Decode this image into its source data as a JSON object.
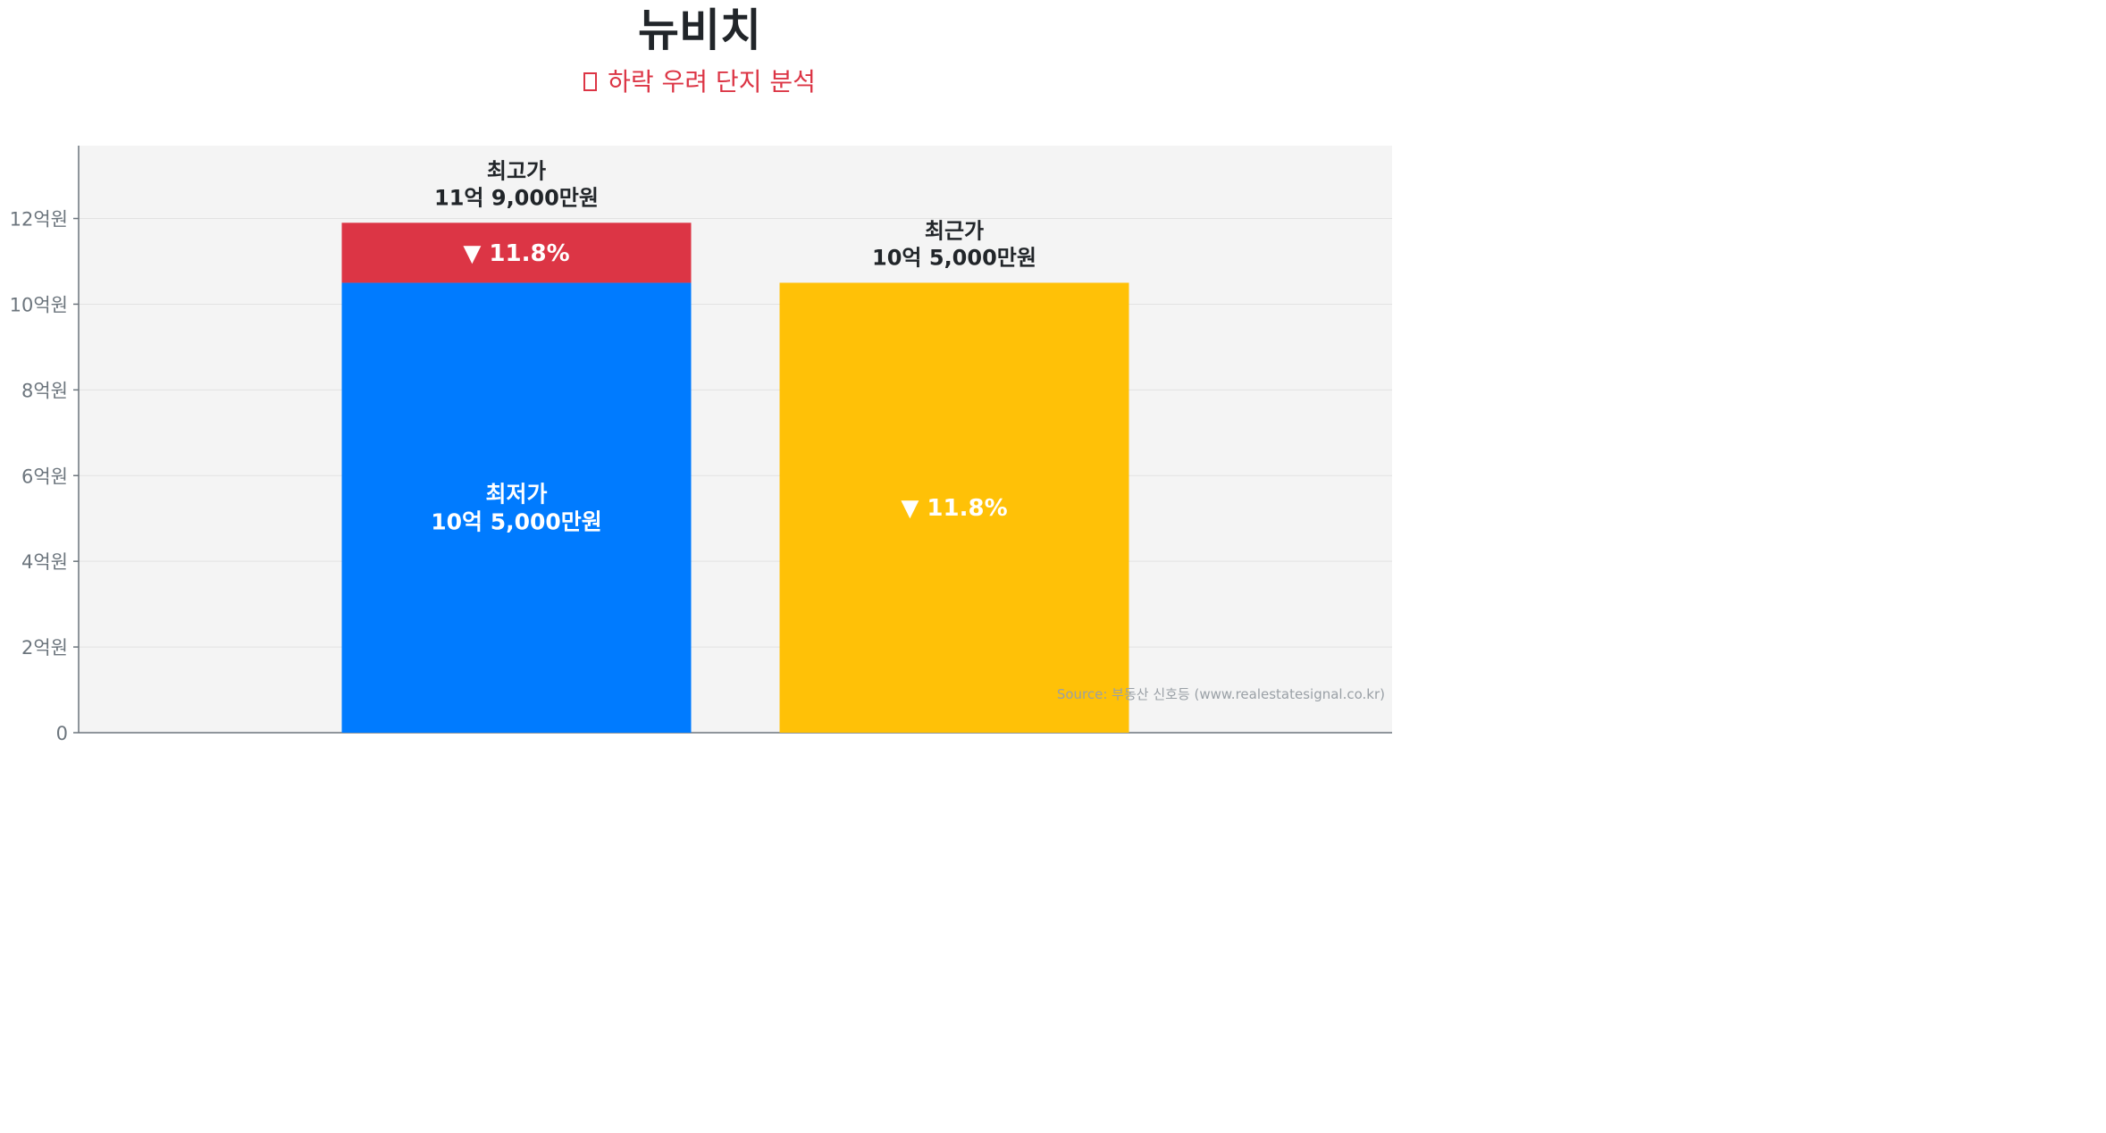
{
  "title": "뉴비치",
  "subtitle": "하락 우려 단지 분석",
  "subtitle_icon": "warning-box-icon",
  "source": "Source: 부동산 신호등 (www.realestatesignal.co.kr)",
  "colors": {
    "lowest": "#007bff",
    "drop": "#dc3545",
    "recent": "#ffc107",
    "plot_bg": "#f4f4f4",
    "axis": "#6c757d",
    "title": "#212529"
  },
  "chart_data": {
    "type": "bar",
    "stacked": true,
    "unit": "억원",
    "ylim": [
      0,
      13.7
    ],
    "yticks": [
      {
        "value": 0,
        "label": "0"
      },
      {
        "value": 2,
        "label": "2억원"
      },
      {
        "value": 4,
        "label": "4억원"
      },
      {
        "value": 6,
        "label": "6억원"
      },
      {
        "value": 8,
        "label": "8억원"
      },
      {
        "value": 10,
        "label": "10억원"
      },
      {
        "value": 12,
        "label": "12억원"
      }
    ],
    "grid": true,
    "bars": [
      {
        "segments": [
          {
            "name": "최저가",
            "value": 10.5,
            "color": "#007bff",
            "label_lines": [
              "최저가",
              "10억 5,000만원"
            ]
          },
          {
            "name": "drop",
            "value": 1.4,
            "color": "#dc3545",
            "label_lines": [
              "▼ 11.8%"
            ]
          }
        ],
        "top_label": [
          "최고가",
          "11억 9,000만원"
        ]
      },
      {
        "segments": [
          {
            "name": "최근가",
            "value": 10.5,
            "color": "#ffc107",
            "label_lines": [
              "▼ 11.8%"
            ]
          }
        ],
        "top_label": [
          "최근가",
          "10억 5,000만원"
        ]
      }
    ]
  }
}
